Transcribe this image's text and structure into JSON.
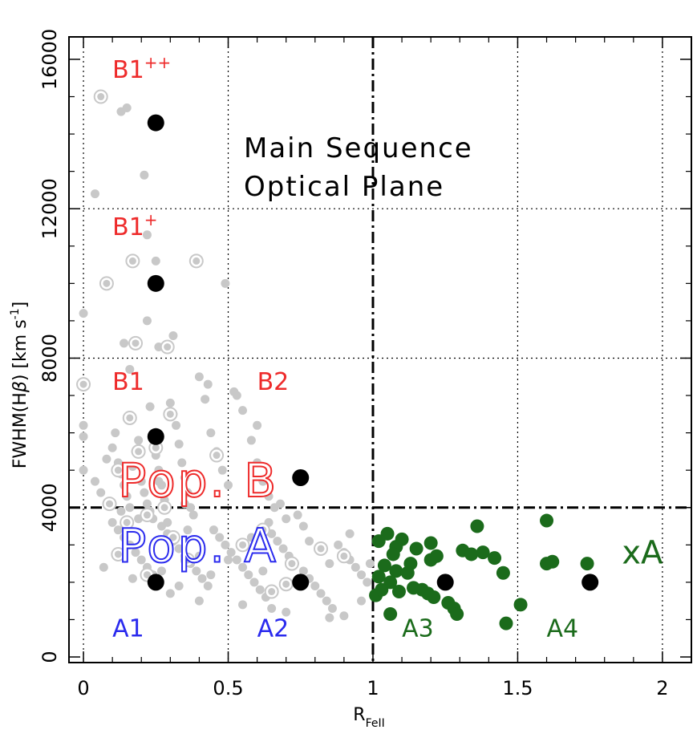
{
  "chart_data": {
    "type": "scatter",
    "xlabel_main": "R",
    "xlabel_sub": "FeII",
    "ylabel": "FWHM(Hβ) [km s⁻¹]",
    "ylabel_parts": {
      "pre": "FWHM(H",
      "beta": "β",
      "post": ") [km s",
      "sup": "-1",
      "end": "]"
    },
    "xlim": [
      -0.05,
      2.1
    ],
    "ylim": [
      -150,
      16600
    ],
    "x_ticks": [
      {
        "value": 0,
        "label": "0"
      },
      {
        "value": 0.5,
        "label": "0.5"
      },
      {
        "value": 1,
        "label": "1"
      },
      {
        "value": 1.5,
        "label": "1.5"
      },
      {
        "value": 2,
        "label": "2"
      }
    ],
    "y_ticks": [
      {
        "value": 0,
        "label": "0"
      },
      {
        "value": 4000,
        "label": "4000"
      },
      {
        "value": 8000,
        "label": "8000"
      },
      {
        "value": 12000,
        "label": "12000"
      },
      {
        "value": 16000,
        "label": "16000"
      }
    ],
    "title_lines": [
      "Main Sequence",
      "Optical Plane"
    ],
    "colors": {
      "red": "#ee2b2b",
      "blue": "#2b2bee",
      "green": "#1b6b1b",
      "grey": "#c8c8c8",
      "black": "#000000"
    },
    "pop_labels": [
      {
        "id": "pop-b",
        "text": "Pop. B",
        "x": 0.12,
        "y": 4300,
        "color": "#ee2b2b"
      },
      {
        "id": "pop-a",
        "text": "Pop. A",
        "x": 0.12,
        "y": 2550,
        "color": "#2b2bee"
      }
    ],
    "bin_labels": [
      {
        "id": "b1pp",
        "base": "B1",
        "sup": "++",
        "x": 0.1,
        "y": 15500,
        "color": "#ee2b2b"
      },
      {
        "id": "b1p",
        "base": "B1",
        "sup": "+",
        "x": 0.1,
        "y": 11300,
        "color": "#ee2b2b"
      },
      {
        "id": "b1",
        "base": "B1",
        "sup": "",
        "x": 0.1,
        "y": 7150,
        "color": "#ee2b2b"
      },
      {
        "id": "b2",
        "base": "B2",
        "sup": "",
        "x": 0.6,
        "y": 7150,
        "color": "#ee2b2b"
      },
      {
        "id": "a1",
        "base": "A1",
        "sup": "",
        "x": 0.1,
        "y": 550,
        "color": "#2b2bee"
      },
      {
        "id": "a2",
        "base": "A2",
        "sup": "",
        "x": 0.6,
        "y": 550,
        "color": "#2b2bee"
      },
      {
        "id": "a3",
        "base": "A3",
        "sup": "",
        "x": 1.1,
        "y": 550,
        "color": "#1b6b1b"
      },
      {
        "id": "a4",
        "base": "A4",
        "sup": "",
        "x": 1.6,
        "y": 550,
        "color": "#1b6b1b"
      },
      {
        "id": "xa",
        "base": "xA",
        "sup": "",
        "x": 1.86,
        "y": 2500,
        "color": "#1b6b1b"
      }
    ],
    "divider_lines": {
      "dashdot": {
        "x": 1.0,
        "y": 4000
      },
      "dotted_x": [
        0,
        0.5,
        1.5,
        2.0
      ],
      "dotted_y": [
        8000,
        12000
      ]
    },
    "series": [
      {
        "style": "black",
        "points": [
          [
            0.25,
            14300
          ],
          [
            0.25,
            10000
          ],
          [
            0.25,
            5900
          ],
          [
            0.75,
            4800
          ],
          [
            0.25,
            2000
          ],
          [
            0.75,
            2000
          ],
          [
            1.25,
            2000
          ],
          [
            1.75,
            2000
          ]
        ]
      },
      {
        "style": "green",
        "points": [
          [
            1.05,
            3300
          ],
          [
            1.1,
            3150
          ],
          [
            1.02,
            3100
          ],
          [
            1.08,
            2950
          ],
          [
            1.15,
            2900
          ],
          [
            1.2,
            3050
          ],
          [
            1.07,
            2750
          ],
          [
            1.13,
            2500
          ],
          [
            1.04,
            2450
          ],
          [
            1.2,
            2600
          ],
          [
            1.22,
            2700
          ],
          [
            1.31,
            2850
          ],
          [
            1.34,
            2750
          ],
          [
            1.38,
            2800
          ],
          [
            1.42,
            2650
          ],
          [
            1.36,
            3500
          ],
          [
            1.45,
            2250
          ],
          [
            1.08,
            2300
          ],
          [
            1.12,
            2250
          ],
          [
            1.02,
            2150
          ],
          [
            1.06,
            2000
          ],
          [
            1.14,
            1850
          ],
          [
            1.17,
            1800
          ],
          [
            1.19,
            1700
          ],
          [
            1.21,
            1600
          ],
          [
            1.01,
            1650
          ],
          [
            1.03,
            1800
          ],
          [
            1.09,
            1750
          ],
          [
            1.26,
            1450
          ],
          [
            1.28,
            1300
          ],
          [
            1.29,
            1150
          ],
          [
            1.06,
            1150
          ],
          [
            1.51,
            1400
          ],
          [
            1.46,
            900
          ],
          [
            1.6,
            2500
          ],
          [
            1.62,
            2550
          ],
          [
            1.74,
            2500
          ],
          [
            1.6,
            3650
          ]
        ]
      },
      {
        "style": "grey",
        "points": [
          [
            0.15,
            14700
          ],
          [
            0.13,
            14600
          ],
          [
            0.04,
            12400
          ],
          [
            0.21,
            12900
          ],
          [
            0.22,
            11300
          ],
          [
            0.25,
            10600
          ],
          [
            0.0,
            9200
          ],
          [
            0.22,
            9000
          ],
          [
            0.14,
            8400
          ],
          [
            0.26,
            8300
          ],
          [
            0.16,
            7700
          ],
          [
            0.31,
            8600
          ],
          [
            0.49,
            10000
          ],
          [
            0.0,
            6200
          ],
          [
            0.0,
            5900
          ],
          [
            0.0,
            5000
          ],
          [
            0.04,
            4700
          ],
          [
            0.06,
            4400
          ],
          [
            0.08,
            5300
          ],
          [
            0.1,
            5600
          ],
          [
            0.11,
            6000
          ],
          [
            0.12,
            5200
          ],
          [
            0.13,
            4900
          ],
          [
            0.14,
            4600
          ],
          [
            0.15,
            4300
          ],
          [
            0.16,
            4000
          ],
          [
            0.17,
            5100
          ],
          [
            0.18,
            5500
          ],
          [
            0.19,
            5800
          ],
          [
            0.2,
            4700
          ],
          [
            0.21,
            4400
          ],
          [
            0.22,
            4100
          ],
          [
            0.23,
            3900
          ],
          [
            0.24,
            3700
          ],
          [
            0.25,
            5400
          ],
          [
            0.26,
            5000
          ],
          [
            0.27,
            4600
          ],
          [
            0.28,
            4200
          ],
          [
            0.29,
            3600
          ],
          [
            0.3,
            6800
          ],
          [
            0.31,
            6500
          ],
          [
            0.32,
            6200
          ],
          [
            0.33,
            5700
          ],
          [
            0.34,
            5200
          ],
          [
            0.35,
            4800
          ],
          [
            0.36,
            4400
          ],
          [
            0.37,
            4000
          ],
          [
            0.38,
            3800
          ],
          [
            0.4,
            7500
          ],
          [
            0.42,
            6900
          ],
          [
            0.44,
            6000
          ],
          [
            0.46,
            5500
          ],
          [
            0.48,
            5000
          ],
          [
            0.5,
            4600
          ],
          [
            0.52,
            7100
          ],
          [
            0.55,
            6600
          ],
          [
            0.58,
            5800
          ],
          [
            0.6,
            5200
          ],
          [
            0.62,
            4700
          ],
          [
            0.64,
            4300
          ],
          [
            0.66,
            4000
          ],
          [
            0.43,
            7300
          ],
          [
            0.53,
            7000
          ],
          [
            0.6,
            6200
          ],
          [
            0.1,
            3600
          ],
          [
            0.12,
            3400
          ],
          [
            0.14,
            3200
          ],
          [
            0.16,
            3000
          ],
          [
            0.18,
            2800
          ],
          [
            0.2,
            2600
          ],
          [
            0.22,
            2400
          ],
          [
            0.24,
            2200
          ],
          [
            0.27,
            3500
          ],
          [
            0.29,
            3300
          ],
          [
            0.31,
            3100
          ],
          [
            0.33,
            2900
          ],
          [
            0.35,
            2700
          ],
          [
            0.37,
            2500
          ],
          [
            0.39,
            2300
          ],
          [
            0.41,
            2100
          ],
          [
            0.43,
            1900
          ],
          [
            0.45,
            3400
          ],
          [
            0.47,
            3200
          ],
          [
            0.49,
            3000
          ],
          [
            0.51,
            2800
          ],
          [
            0.53,
            2600
          ],
          [
            0.55,
            2400
          ],
          [
            0.57,
            2200
          ],
          [
            0.59,
            2000
          ],
          [
            0.61,
            1800
          ],
          [
            0.63,
            1600
          ],
          [
            0.65,
            3300
          ],
          [
            0.67,
            3100
          ],
          [
            0.69,
            2900
          ],
          [
            0.71,
            2700
          ],
          [
            0.73,
            2500
          ],
          [
            0.76,
            2300
          ],
          [
            0.78,
            2100
          ],
          [
            0.8,
            1900
          ],
          [
            0.82,
            1700
          ],
          [
            0.84,
            1500
          ],
          [
            0.86,
            1300
          ],
          [
            0.88,
            3000
          ],
          [
            0.9,
            2800
          ],
          [
            0.92,
            2600
          ],
          [
            0.94,
            2400
          ],
          [
            0.96,
            2200
          ],
          [
            0.98,
            2000
          ],
          [
            0.07,
            2400
          ],
          [
            0.3,
            1700
          ],
          [
            0.4,
            1500
          ],
          [
            0.55,
            1400
          ],
          [
            0.65,
            1300
          ],
          [
            0.7,
            1200
          ],
          [
            0.85,
            1050
          ],
          [
            0.9,
            1100
          ],
          [
            0.96,
            1500
          ],
          [
            0.99,
            2500
          ],
          [
            0.92,
            3300
          ],
          [
            0.76,
            3500
          ],
          [
            0.74,
            3800
          ],
          [
            0.64,
            3600
          ],
          [
            0.68,
            4100
          ],
          [
            0.78,
            3100
          ],
          [
            0.85,
            2500
          ],
          [
            0.4,
            2700
          ],
          [
            0.36,
            3400
          ],
          [
            0.44,
            2200
          ],
          [
            0.5,
            2600
          ],
          [
            0.58,
            3200
          ],
          [
            0.62,
            2300
          ],
          [
            0.7,
            3700
          ],
          [
            0.33,
            1900
          ],
          [
            0.27,
            2300
          ],
          [
            0.19,
            3700
          ],
          [
            0.17,
            2100
          ],
          [
            0.13,
            3900
          ],
          [
            0.23,
            6700
          ],
          [
            0.26,
            4700
          ],
          [
            0.35,
            4100
          ]
        ]
      },
      {
        "style": "ring",
        "points": [
          [
            0.06,
            15000
          ],
          [
            0.17,
            10600
          ],
          [
            0.08,
            10000
          ],
          [
            0.39,
            10600
          ],
          [
            0.18,
            8400
          ],
          [
            0.29,
            8300
          ],
          [
            0.0,
            7300
          ],
          [
            0.16,
            6400
          ],
          [
            0.09,
            4100
          ],
          [
            0.12,
            5000
          ],
          [
            0.15,
            3600
          ],
          [
            0.22,
            3800
          ],
          [
            0.25,
            5600
          ],
          [
            0.3,
            6500
          ],
          [
            0.46,
            5400
          ],
          [
            0.62,
            3400
          ],
          [
            0.82,
            2900
          ],
          [
            0.9,
            2700
          ],
          [
            0.72,
            2500
          ],
          [
            0.7,
            1950
          ],
          [
            0.22,
            2200
          ],
          [
            0.36,
            2600
          ],
          [
            0.12,
            2750
          ],
          [
            0.31,
            3200
          ],
          [
            0.65,
            1750
          ],
          [
            0.55,
            3000
          ],
          [
            0.28,
            4000
          ],
          [
            0.19,
            5500
          ]
        ]
      }
    ]
  }
}
